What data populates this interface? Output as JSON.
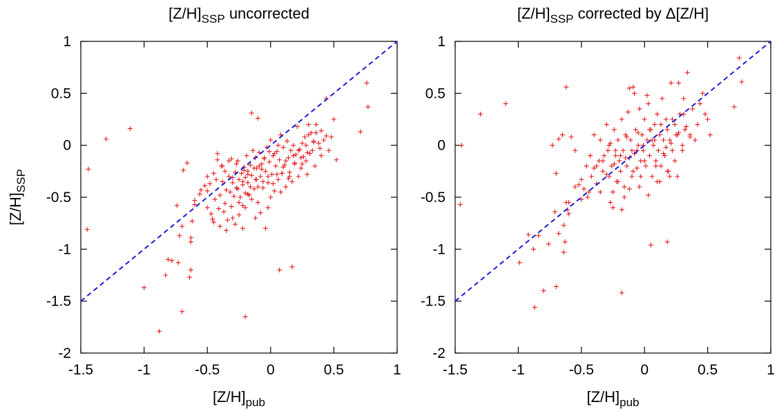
{
  "chart_data": [
    {
      "type": "scatter",
      "title": {
        "base": "[Z/H]",
        "sub": "SSP",
        "rest": "  uncorrected"
      },
      "xlabel": {
        "base": "[Z/H]",
        "sub": "pub"
      },
      "ylabel": {
        "base": "[Z/H]",
        "sub": "SSP"
      },
      "xlim": [
        -1.5,
        1
      ],
      "ylim": [
        -2,
        1
      ],
      "xticks": [
        "-1.5",
        "-1",
        "-0.5",
        "0",
        "0.5",
        "1"
      ],
      "yticks": [
        "-2",
        "-1.5",
        "-1",
        "-0.5",
        "0",
        "0.5",
        "1"
      ],
      "grid": false,
      "colors": {
        "points": "#e31a1c",
        "line": "#1a1ad8"
      },
      "series": [
        {
          "kind": "points",
          "marker": "+",
          "x": [
            -1.44,
            -1.45,
            -1.3,
            -1.11,
            -0.88,
            -0.83,
            -0.81,
            -0.78,
            -0.73,
            -0.72,
            -0.7,
            -0.69,
            -0.66,
            -0.64,
            -0.63,
            -0.63,
            -0.62,
            -0.6,
            -0.6,
            -0.56,
            -0.55,
            -0.52,
            -0.5,
            -0.5,
            -0.48,
            -0.47,
            -0.46,
            -0.45,
            -0.44,
            -0.43,
            -0.42,
            -0.41,
            -0.4,
            -0.39,
            -0.38,
            -0.37,
            -0.36,
            -0.36,
            -0.35,
            -0.34,
            -0.33,
            -0.32,
            -0.31,
            -0.31,
            -0.3,
            -0.29,
            -0.28,
            -0.28,
            -0.27,
            -0.26,
            -0.25,
            -0.25,
            -0.24,
            -0.23,
            -0.22,
            -0.22,
            -0.21,
            -0.2,
            -0.2,
            -0.19,
            -0.18,
            -0.18,
            -0.17,
            -0.16,
            -0.15,
            -0.15,
            -0.14,
            -0.13,
            -0.12,
            -0.12,
            -0.11,
            -0.1,
            -0.1,
            -0.09,
            -0.08,
            -0.07,
            -0.06,
            -0.05,
            -0.04,
            -0.03,
            -0.02,
            -0.01,
            0.0,
            0.01,
            0.02,
            0.03,
            0.04,
            0.05,
            0.06,
            0.07,
            0.08,
            0.09,
            0.1,
            0.11,
            0.12,
            0.13,
            0.14,
            0.15,
            0.16,
            0.17,
            0.18,
            0.19,
            0.2,
            0.21,
            0.22,
            0.23,
            0.24,
            0.25,
            0.26,
            0.27,
            0.28,
            0.29,
            0.3,
            0.31,
            0.32,
            0.34,
            0.35,
            0.36,
            0.38,
            0.4,
            0.42,
            0.44,
            0.46,
            0.48,
            0.5,
            0.52,
            0.71,
            0.76,
            0.77,
            -1.0,
            -0.74,
            -0.7,
            -0.63,
            -0.5,
            -0.45,
            -0.4,
            -0.35,
            -0.3,
            -0.25,
            -0.22,
            -0.2,
            -0.18,
            -0.15,
            -0.12,
            -0.1,
            -0.08,
            -0.06,
            -0.04,
            -0.02,
            0.0,
            0.02,
            0.05,
            0.08,
            0.1,
            0.12,
            0.15,
            0.18,
            0.22,
            0.25,
            0.28,
            0.3,
            0.33,
            0.36,
            0.4,
            -0.2,
            0.07,
            0.17,
            -0.21,
            -0.33,
            -0.27,
            -0.18,
            -0.13,
            -0.09,
            -0.05,
            -0.01,
            0.03,
            0.06,
            -0.42,
            -0.38,
            -0.3,
            -0.26,
            -0.22,
            -0.16,
            -0.11,
            -0.07,
            -0.02,
            0.09,
            0.14,
            0.19,
            0.24,
            0.29,
            0.34,
            0.39,
            0.44
          ],
          "y": [
            -0.23,
            -0.81,
            0.06,
            0.16,
            -1.79,
            -1.25,
            -1.1,
            -1.11,
            -1.13,
            -0.87,
            -1.6,
            -0.24,
            -0.17,
            -1.27,
            -0.89,
            -0.93,
            -0.73,
            -0.53,
            -0.57,
            -0.47,
            -0.43,
            -0.39,
            -0.3,
            -0.44,
            -0.37,
            -0.66,
            -0.71,
            -0.27,
            -0.52,
            -0.33,
            -0.08,
            -0.61,
            -0.48,
            -0.2,
            -0.35,
            -0.64,
            -0.25,
            -0.56,
            -0.43,
            -0.72,
            -0.3,
            -0.45,
            -0.13,
            -0.59,
            -0.36,
            -0.49,
            -0.26,
            -0.76,
            -0.41,
            -0.15,
            -0.33,
            -0.67,
            -0.5,
            -0.27,
            -0.38,
            -0.58,
            -0.21,
            -0.31,
            -0.46,
            -0.1,
            -0.25,
            -0.36,
            -0.48,
            -0.19,
            0.31,
            -0.29,
            -0.05,
            -0.42,
            -0.12,
            -0.33,
            -0.22,
            0.26,
            -0.55,
            -0.07,
            -0.3,
            -0.18,
            -0.41,
            -0.13,
            -0.25,
            -0.02,
            -0.36,
            -0.16,
            0.05,
            -0.28,
            -0.1,
            -0.44,
            -0.2,
            -0.06,
            -0.33,
            -0.14,
            0.1,
            -0.27,
            -0.02,
            -0.19,
            -0.4,
            0.04,
            -0.12,
            -0.26,
            -0.05,
            -0.35,
            0.0,
            -0.17,
            -0.09,
            0.18,
            -0.3,
            -0.04,
            -0.22,
            0.02,
            -0.11,
            0.08,
            -0.15,
            -0.28,
            0.2,
            -0.08,
            0.12,
            0.04,
            -0.2,
            0.12,
            0.02,
            -0.1,
            0.05,
            0.45,
            -0.05,
            0.08,
            0.25,
            -0.14,
            0.13,
            0.6,
            0.37,
            -1.37,
            -0.58,
            -0.78,
            -1.2,
            -0.6,
            -0.74,
            -0.78,
            -0.82,
            -0.7,
            -0.55,
            -0.8,
            -0.6,
            -0.47,
            -0.52,
            -0.7,
            -0.4,
            -0.65,
            -0.35,
            -0.8,
            -0.6,
            -0.5,
            -0.37,
            -0.28,
            -0.45,
            -0.21,
            -0.15,
            -0.3,
            -0.1,
            -0.05,
            -0.18,
            0.0,
            0.1,
            -0.05,
            0.2,
            0.14,
            -1.65,
            -1.2,
            -1.17,
            -0.24,
            -0.15,
            -0.18,
            -0.28,
            -0.22,
            -0.2,
            -0.12,
            -0.06,
            -0.08,
            0.0,
            -0.14,
            -0.2,
            -0.31,
            -0.42,
            -0.35,
            -0.4,
            -0.33,
            -0.23,
            -0.3,
            -0.27,
            -0.32,
            -0.18,
            -0.12,
            -0.07,
            0.03,
            -0.03,
            0.09
          ]
        },
        {
          "kind": "line",
          "style": "dashed",
          "x": [
            -1.5,
            1
          ],
          "y": [
            -1.5,
            1
          ]
        }
      ]
    },
    {
      "type": "scatter",
      "title": {
        "base": "[Z/H]",
        "sub": "SSP",
        "rest": "  corrected by Δ[Z/H]"
      },
      "xlabel": {
        "base": "[Z/H]",
        "sub": "pub"
      },
      "ylabel": {
        "base": "",
        "sub": ""
      },
      "xlim": [
        -1.5,
        1
      ],
      "ylim": [
        -2,
        1
      ],
      "xticks": [
        "-1.5",
        "-1",
        "-0.5",
        "0",
        "0.5",
        "1"
      ],
      "yticks": [
        "-2",
        "-1.5",
        "-1",
        "-0.5",
        "0",
        "0.5",
        "1"
      ],
      "grid": false,
      "colors": {
        "points": "#e31a1c",
        "line": "#1a1ad8"
      },
      "series": [
        {
          "kind": "points",
          "marker": "+",
          "x": [
            -1.45,
            -1.46,
            -1.3,
            -1.1,
            -0.99,
            -0.92,
            -0.88,
            -0.84,
            -0.8,
            -0.76,
            -0.73,
            -0.71,
            -0.7,
            -0.68,
            -0.65,
            -0.64,
            -0.63,
            -0.62,
            -0.61,
            -0.6,
            -0.58,
            -0.55,
            -0.52,
            -0.5,
            -0.48,
            -0.46,
            -0.44,
            -0.42,
            -0.4,
            -0.38,
            -0.36,
            -0.35,
            -0.33,
            -0.32,
            -0.3,
            -0.29,
            -0.28,
            -0.27,
            -0.26,
            -0.25,
            -0.24,
            -0.23,
            -0.22,
            -0.21,
            -0.2,
            -0.19,
            -0.18,
            -0.17,
            -0.16,
            -0.15,
            -0.14,
            -0.13,
            -0.12,
            -0.11,
            -0.1,
            -0.09,
            -0.08,
            -0.07,
            -0.06,
            -0.05,
            -0.04,
            -0.03,
            -0.02,
            -0.01,
            0.0,
            0.01,
            0.02,
            0.03,
            0.04,
            0.05,
            0.06,
            0.07,
            0.08,
            0.09,
            0.1,
            0.11,
            0.12,
            0.13,
            0.14,
            0.15,
            0.16,
            0.17,
            0.18,
            0.19,
            0.2,
            0.21,
            0.22,
            0.24,
            0.25,
            0.26,
            0.28,
            0.3,
            0.32,
            0.34,
            0.36,
            0.38,
            0.4,
            0.42,
            0.44,
            0.46,
            0.48,
            0.5,
            0.52,
            0.71,
            0.75,
            0.77,
            -0.87,
            -0.68,
            -0.64,
            -0.18,
            0.05,
            0.18,
            -0.6,
            -0.55,
            -0.5,
            -0.45,
            -0.4,
            -0.35,
            -0.3,
            -0.27,
            -0.24,
            -0.21,
            -0.18,
            -0.15,
            -0.12,
            -0.09,
            -0.06,
            -0.03,
            0.0,
            0.03,
            0.06,
            0.09,
            0.12,
            0.15,
            0.18,
            0.21,
            0.24,
            0.27,
            0.3,
            0.33,
            0.36,
            -0.43,
            -0.38,
            -0.33,
            -0.28,
            -0.23,
            -0.19,
            -0.14,
            -0.1,
            -0.05,
            -0.01,
            0.04,
            0.08,
            0.13,
            0.17,
            0.22,
            0.26,
            0.31,
            -0.7,
            -0.62,
            -0.12,
            -0.08,
            0.02,
            0.27,
            0.31,
            -0.25,
            -0.16,
            -0.04,
            0.1,
            0.2
          ],
          "y": [
            0.0,
            -0.57,
            0.3,
            0.4,
            -1.13,
            -0.86,
            -1.0,
            -0.87,
            -1.4,
            -0.95,
            0.0,
            -0.64,
            -1.36,
            0.06,
            0.1,
            -1.03,
            -0.93,
            0.56,
            -0.62,
            -0.66,
            0.08,
            -0.05,
            -0.38,
            -0.52,
            -0.42,
            -0.2,
            -0.45,
            -0.3,
            0.1,
            -0.37,
            -0.15,
            0.05,
            -0.25,
            -0.1,
            0.2,
            -0.05,
            -0.3,
            0.02,
            -0.2,
            -0.45,
            0.15,
            -0.1,
            -0.35,
            0.05,
            -0.15,
            -0.25,
            0.25,
            -0.05,
            -0.4,
            0.1,
            -0.2,
            0.32,
            -0.12,
            0.05,
            -0.3,
            0.56,
            -0.08,
            0.15,
            -0.22,
            0.0,
            0.35,
            -0.15,
            0.1,
            -0.05,
            0.25,
            -0.2,
            0.05,
            0.4,
            -0.1,
            0.15,
            -0.3,
            0.0,
            0.2,
            -0.15,
            0.3,
            -0.05,
            0.1,
            -0.2,
            0.45,
            0.05,
            -0.1,
            0.25,
            0.15,
            -0.25,
            0.05,
            0.6,
            -0.05,
            0.2,
            0.1,
            -0.3,
            0.3,
            0.0,
            0.15,
            0.7,
            0.1,
            0.35,
            0.05,
            0.2,
            0.4,
            0.5,
            0.3,
            0.25,
            0.1,
            0.37,
            0.84,
            0.61,
            -1.56,
            -0.85,
            -0.77,
            -1.42,
            -0.96,
            -0.93,
            -0.55,
            -0.4,
            -0.33,
            -0.5,
            -0.22,
            -0.45,
            -0.28,
            -0.55,
            -0.18,
            -0.35,
            -0.62,
            -0.12,
            -0.42,
            -0.25,
            -0.05,
            -0.3,
            -0.15,
            -0.48,
            0.05,
            -0.2,
            -0.35,
            -0.08,
            -0.25,
            0.02,
            -0.15,
            0.12,
            -0.05,
            0.18,
            0.08,
            -0.1,
            -0.2,
            -0.15,
            0.0,
            -0.05,
            -0.1,
            0.08,
            -0.05,
            0.12,
            0.0,
            0.15,
            0.05,
            0.2,
            -0.02,
            0.25,
            0.1,
            0.3,
            -0.27,
            -0.55,
            0.55,
            0.5,
            0.48,
            0.6,
            0.45,
            -0.6,
            -0.5,
            -0.4,
            -0.35,
            -0.3
          ]
        },
        {
          "kind": "line",
          "style": "dashed",
          "x": [
            -1.5,
            1
          ],
          "y": [
            -1.5,
            1
          ]
        }
      ]
    }
  ]
}
